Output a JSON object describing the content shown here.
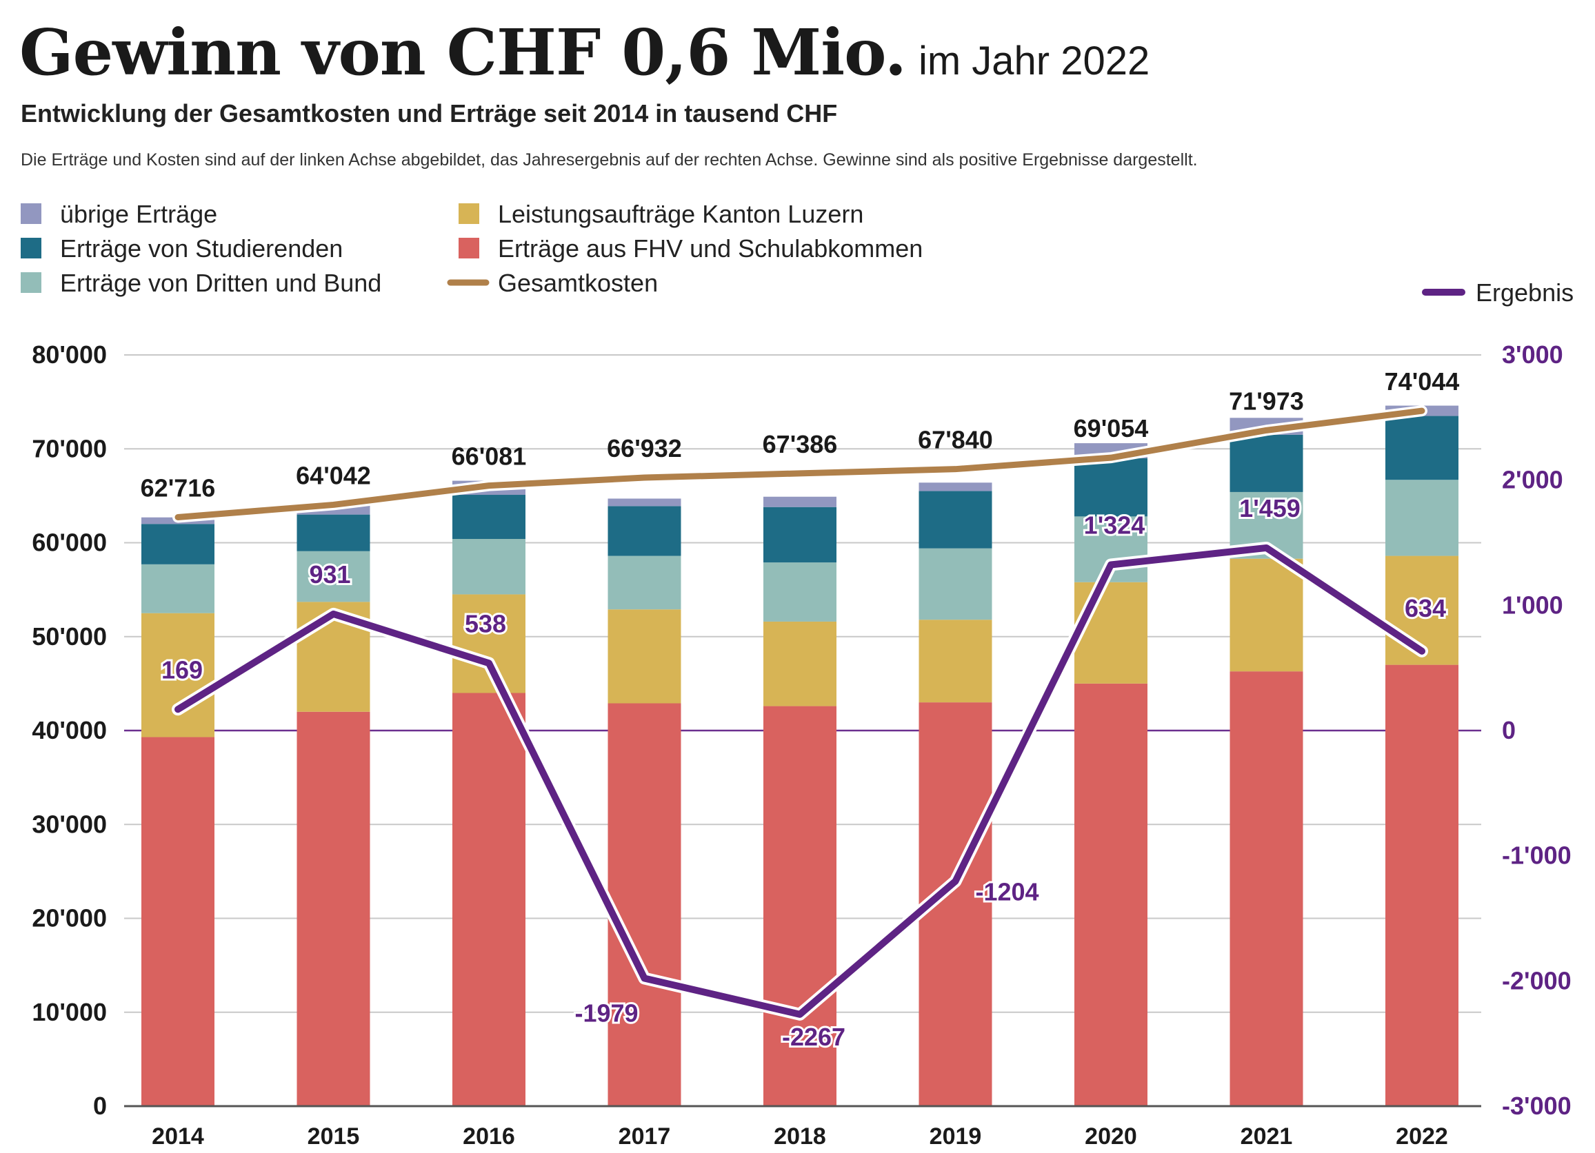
{
  "header": {
    "title": "Gewinn von CHF 0,6 Mio.",
    "title_suffix": "im Jahr 2022",
    "subtitle": "Entwicklung der Gesamtkosten und Erträge seit 2014 in tausend CHF",
    "note": "Die Erträge und Kosten sind auf der linken Achse abgebildet, das Jahresergebnis auf der rechten Achse. Gewinne sind als positive Ergebnisse dargestellt."
  },
  "chart_data": {
    "type": "bar",
    "stacked": true,
    "categories": [
      "2014",
      "2015",
      "2016",
      "2017",
      "2018",
      "2019",
      "2020",
      "2021",
      "2022"
    ],
    "y_left_range": [
      0,
      80000
    ],
    "y_left_ticks": [
      "0",
      "10'000",
      "20'000",
      "30'000",
      "40'000",
      "50'000",
      "60'000",
      "70'000",
      "80'000"
    ],
    "y_right_range": [
      -3000,
      3000
    ],
    "y_right_ticks": [
      "-3'000",
      "-2'000",
      "-1'000",
      "0",
      "1'000",
      "2'000",
      "3'000"
    ],
    "grid": true,
    "legend_placement": "top-left",
    "series": [
      {
        "name": "Erträge aus FHV und Schulabkommen",
        "color": "#d9625f",
        "values": [
          39300,
          42000,
          44000,
          42900,
          42600,
          43000,
          45000,
          46300,
          47000
        ]
      },
      {
        "name": "Leistungsaufträge Kanton Luzern",
        "color": "#d7b455",
        "values": [
          13200,
          11700,
          10500,
          10000,
          9000,
          8800,
          10800,
          12000,
          11600
        ]
      },
      {
        "name": "Erträge von Dritten und Bund",
        "color": "#93bdb8",
        "values": [
          5200,
          5400,
          5900,
          5700,
          6300,
          7600,
          7000,
          7100,
          8100
        ]
      },
      {
        "name": "Erträge von Studierenden",
        "color": "#1e6c86",
        "values": [
          4300,
          3900,
          4700,
          5300,
          5900,
          6100,
          6200,
          6100,
          6800
        ]
      },
      {
        "name": "übrige Erträge",
        "color": "#9297c0",
        "values": [
          700,
          1000,
          1500,
          800,
          1100,
          900,
          1600,
          1800,
          1100
        ]
      }
    ],
    "line_series": [
      {
        "name": "Gesamtkosten",
        "color": "#b0804a",
        "axis": "left",
        "values": [
          62716,
          64042,
          66081,
          66932,
          67386,
          67840,
          69054,
          71973,
          74044
        ],
        "labels": [
          "62'716",
          "64'042",
          "66'081",
          "66'932",
          "67'386",
          "67'840",
          "69'054",
          "71'973",
          "74'044"
        ]
      },
      {
        "name": "Ergebnis",
        "color": "#5e2384",
        "axis": "right",
        "values": [
          169,
          931,
          538,
          -1979,
          -2267,
          -1204,
          1324,
          1459,
          634
        ],
        "labels": [
          "169",
          "931",
          "538",
          "-1979",
          "-2267",
          "-1204",
          "1'324",
          "1'459",
          "634"
        ]
      }
    ]
  }
}
